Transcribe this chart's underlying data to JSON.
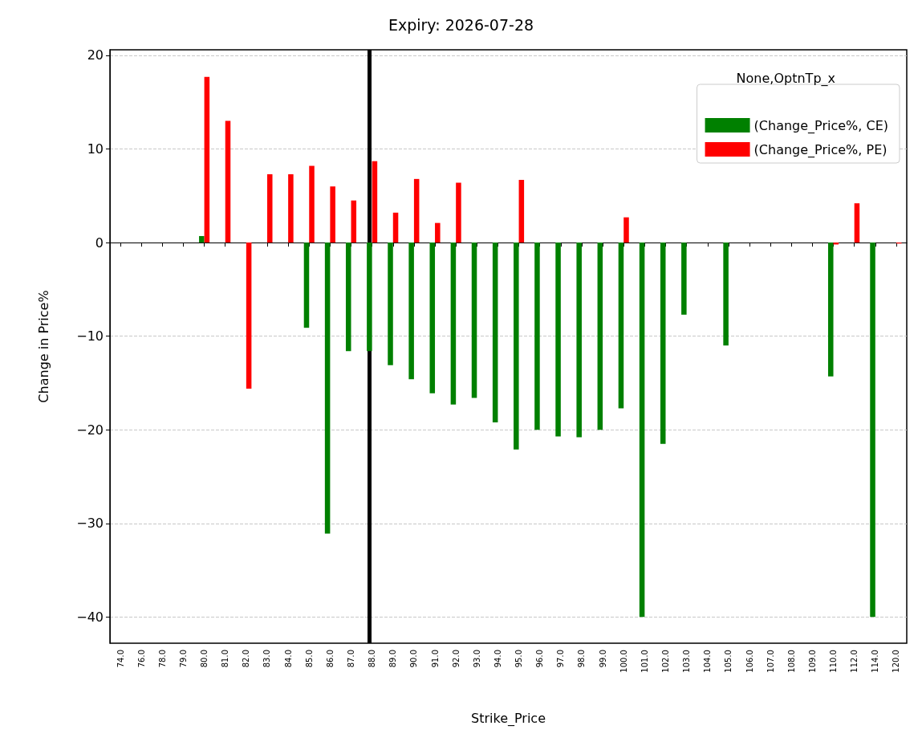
{
  "chart_data": {
    "type": "bar",
    "title": "Expiry: 2026-07-28",
    "xlabel": "Strike_Price",
    "ylabel": "Change in Price%",
    "legend_title": "None,OptnTp_x",
    "categories": [
      "74.0",
      "76.0",
      "78.0",
      "79.0",
      "80.0",
      "81.0",
      "82.0",
      "83.0",
      "84.0",
      "85.0",
      "86.0",
      "87.0",
      "88.0",
      "89.0",
      "90.0",
      "91.0",
      "92.0",
      "93.0",
      "94.0",
      "95.0",
      "96.0",
      "97.0",
      "98.0",
      "99.0",
      "100.0",
      "101.0",
      "102.0",
      "103.0",
      "104.0",
      "105.0",
      "106.0",
      "107.0",
      "108.0",
      "109.0",
      "110.0",
      "112.0",
      "114.0",
      "120.0"
    ],
    "series": [
      {
        "name": "(Change_Price%, CE)",
        "color": "#008000",
        "values": [
          null,
          null,
          null,
          null,
          0.7,
          null,
          null,
          null,
          null,
          -9.1,
          -31.1,
          -11.6,
          -11.6,
          -13.1,
          -14.6,
          -16.1,
          -17.3,
          -16.6,
          -19.2,
          -22.1,
          -20.0,
          -20.7,
          -20.8,
          -20.0,
          -17.7,
          -40,
          -21.5,
          -7.7,
          null,
          -11.0,
          null,
          null,
          null,
          null,
          -14.3,
          null,
          -40,
          null
        ]
      },
      {
        "name": "(Change_Price%, PE)",
        "color": "#ff0000",
        "values": [
          null,
          null,
          null,
          null,
          17.7,
          13.0,
          -15.6,
          7.3,
          7.3,
          8.2,
          6.0,
          4.5,
          8.7,
          3.2,
          6.8,
          2.1,
          6.4,
          null,
          null,
          6.7,
          null,
          null,
          null,
          null,
          2.7,
          null,
          null,
          null,
          null,
          null,
          null,
          null,
          null,
          null,
          -0.2,
          4.2,
          null,
          -0.1
        ]
      }
    ],
    "ylim": [
      -42.8,
      20.6
    ],
    "yticks": [
      -40,
      -30,
      -20,
      -10,
      0,
      10,
      20
    ],
    "grid": "y",
    "legend": "top right",
    "ref_lines": [
      {
        "axis": "x",
        "value": "88.0",
        "color": "#000000"
      }
    ]
  }
}
